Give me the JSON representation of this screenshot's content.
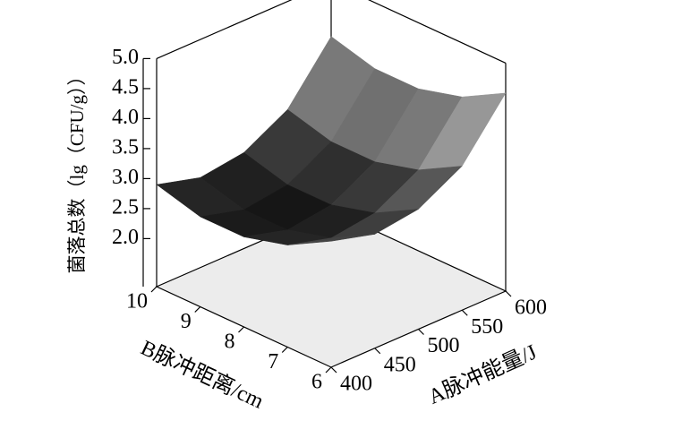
{
  "chart_data": {
    "type": "surface",
    "xlabel": "A脉冲能量/J",
    "ylabel": "B脉冲距离/cm",
    "zlabel": "菌落总数（lg（CFU/g））",
    "x": [
      400,
      450,
      500,
      550,
      600
    ],
    "y": [
      6,
      7,
      8,
      9,
      10
    ],
    "z": [
      [
        3.3,
        3.1,
        3.2,
        3.6,
        4.5
      ],
      [
        2.9,
        2.7,
        2.8,
        3.2,
        4.1
      ],
      [
        2.7,
        2.5,
        2.6,
        3.0,
        3.9
      ],
      [
        2.7,
        2.5,
        2.6,
        3.0,
        3.9
      ],
      [
        2.9,
        2.7,
        2.8,
        3.2,
        4.1
      ]
    ],
    "xlim": [
      400,
      600
    ],
    "ylim": [
      6,
      10
    ],
    "zlim": [
      1.2,
      5.0
    ],
    "xticks": [
      400,
      450,
      500,
      550,
      600
    ],
    "yticks": [
      6,
      7,
      8,
      9,
      10
    ],
    "zticks": [
      {
        "value": 2,
        "label": "2.0"
      },
      {
        "value": 2.5,
        "label": "2.5"
      },
      {
        "value": 3,
        "label": "3.0"
      },
      {
        "value": 3.5,
        "label": "3.5"
      },
      {
        "value": 4,
        "label": "4.0"
      },
      {
        "value": 4.5,
        "label": "4.5"
      },
      {
        "value": 5,
        "label": "5.0"
      }
    ],
    "colormap": [
      "#111111",
      "#d8d8d8"
    ]
  }
}
